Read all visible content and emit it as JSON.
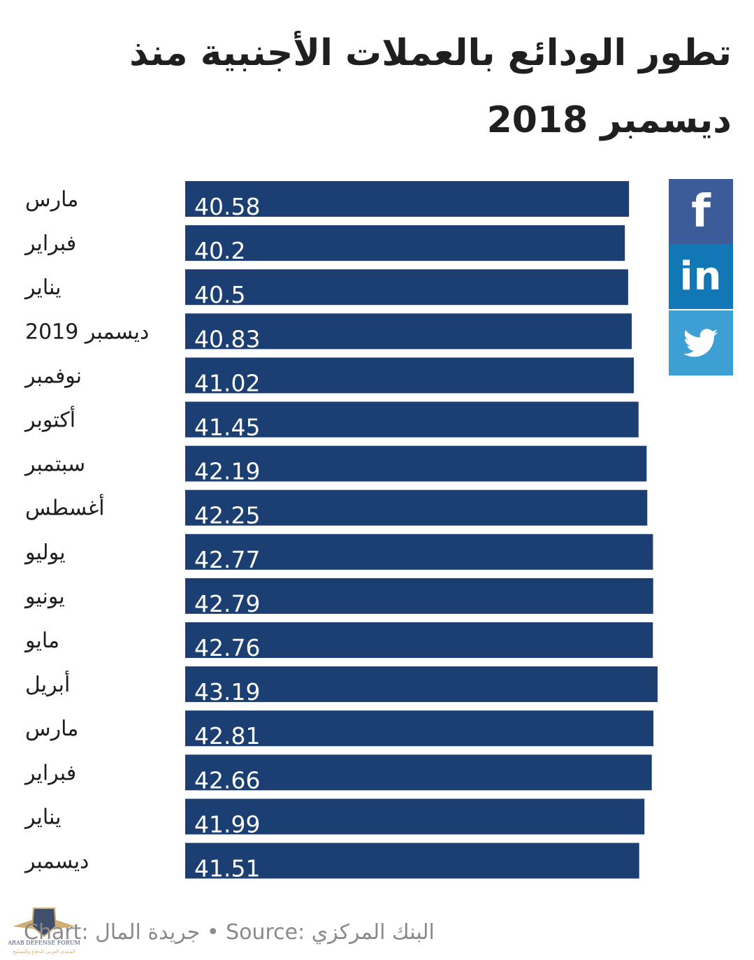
{
  "title": "تطور الودائع بالعملات الأجنبية منذ ديسمبر 2018",
  "colors": {
    "bar": "#1b3f73",
    "facebook": "#3b5b99",
    "linkedin": "#1178b5",
    "twitter": "#3d9fd3"
  },
  "share": {
    "facebook_glyph": "f",
    "linkedin_glyph": "in",
    "twitter_icon": "twitter-bird"
  },
  "footer": {
    "text": "Chart: جريدة المال • Source: البنك المركزي"
  },
  "watermark": {
    "logo_text": "ARAB DEFENSE FORUM",
    "logo_text_ar": "المنتدى العربي للدفاع والتسليح"
  },
  "chart_data": {
    "type": "bar",
    "orientation": "horizontal",
    "categories": [
      "مارس",
      "فبراير",
      "يناير",
      "ديسمبر 2019",
      "نوفمبر",
      "أكتوبر",
      "سبتمبر",
      "أغسطس",
      "يوليو",
      "يونيو",
      "مايو",
      "أبريل",
      "مارس",
      "فبراير",
      "يناير",
      "ديسمبر"
    ],
    "values": [
      40.58,
      40.2,
      40.5,
      40.83,
      41.02,
      41.45,
      42.19,
      42.25,
      42.77,
      42.79,
      42.76,
      43.19,
      42.81,
      42.66,
      41.99,
      41.51
    ],
    "value_labels": [
      "40.58",
      "40.2",
      "40.5",
      "40.83",
      "41.02",
      "41.45",
      "42.19",
      "42.25",
      "42.77",
      "42.79",
      "42.76",
      "43.19",
      "42.81",
      "42.66",
      "41.99",
      "41.51"
    ],
    "xlim": [
      0,
      43.19
    ],
    "grid": false,
    "legend": "none"
  }
}
